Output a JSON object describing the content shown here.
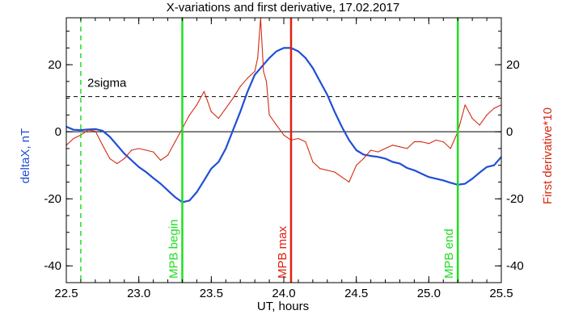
{
  "chart_data": {
    "type": "line",
    "title": "X-variations and first derivative, 17.02.2017",
    "xlabel": "UT, hours",
    "ylabel_left": "deltaX, nT",
    "ylabel_right": "First derivative*10",
    "xlim": [
      22.5,
      25.5
    ],
    "ylim": [
      -45,
      34
    ],
    "x_ticks": [
      22.5,
      23.0,
      23.5,
      24.0,
      24.5,
      25.0,
      25.5
    ],
    "x_tick_labels": [
      "22.5",
      "23.0",
      "23.5",
      "24.0",
      "24.5",
      "25.0",
      "25.5"
    ],
    "y_ticks": [
      -40,
      -20,
      0,
      20
    ],
    "y_tick_labels": [
      "-40",
      "-20",
      "0",
      "20"
    ],
    "grid": false,
    "colors": {
      "deltaX": "#1f4fd6",
      "derivative": "#d42a12",
      "mpb_edges": "#22dd22",
      "mpb_max": "#e02010",
      "dashed_start": "#22dd22",
      "axes": "#000000"
    },
    "reference_lines": [
      {
        "label": "2sigma",
        "y": 10.5,
        "style": "dashed"
      },
      {
        "label": "",
        "y": 0,
        "style": "solid"
      }
    ],
    "vertical_markers": [
      {
        "label": "",
        "x": 22.6,
        "style": "dashed",
        "color": "green"
      },
      {
        "label": "MPB begin",
        "x": 23.3,
        "style": "solid",
        "color": "green"
      },
      {
        "label": "MPB max",
        "x": 24.05,
        "style": "solid",
        "color": "red"
      },
      {
        "label": "MPB end",
        "x": 25.2,
        "style": "solid",
        "color": "green"
      }
    ],
    "series": [
      {
        "color_key": "deltaX",
        "x": [
          22.5,
          22.55,
          22.6,
          22.65,
          22.7,
          22.75,
          22.8,
          22.85,
          22.9,
          22.95,
          23.0,
          23.05,
          23.1,
          23.15,
          23.2,
          23.25,
          23.3,
          23.35,
          23.4,
          23.45,
          23.5,
          23.55,
          23.6,
          23.65,
          23.7,
          23.75,
          23.8,
          23.85,
          23.9,
          23.95,
          24.0,
          24.05,
          24.1,
          24.15,
          24.2,
          24.25,
          24.3,
          24.35,
          24.4,
          24.45,
          24.5,
          24.55,
          24.6,
          24.65,
          24.7,
          24.75,
          24.8,
          24.85,
          24.9,
          24.95,
          25.0,
          25.05,
          25.1,
          25.15,
          25.2,
          25.25,
          25.3,
          25.35,
          25.4,
          25.45,
          25.5
        ],
        "y": [
          1.5,
          0.6,
          0.5,
          0.7,
          0.8,
          0.3,
          -1.5,
          -4,
          -6.5,
          -8.5,
          -10.5,
          -12,
          -13.8,
          -15.5,
          -17.5,
          -19.5,
          -21,
          -20.5,
          -18,
          -14.5,
          -11,
          -9,
          -5,
          0.5,
          6,
          12,
          17,
          19.5,
          22,
          24,
          25,
          25,
          24,
          22,
          19,
          15,
          11,
          6,
          1.5,
          -2.5,
          -5.5,
          -6.8,
          -7.2,
          -7.5,
          -8,
          -9,
          -9.5,
          -10.8,
          -11.5,
          -12.5,
          -13.5,
          -14,
          -14.5,
          -15.2,
          -15.8,
          -15.5,
          -14,
          -12.2,
          -10.5,
          -10,
          -7.5
        ]
      },
      {
        "color_key": "derivative",
        "x": [
          22.5,
          22.55,
          22.6,
          22.65,
          22.7,
          22.75,
          22.8,
          22.85,
          22.9,
          22.95,
          23.0,
          23.05,
          23.1,
          23.15,
          23.2,
          23.25,
          23.3,
          23.35,
          23.4,
          23.45,
          23.5,
          23.55,
          23.6,
          23.65,
          23.7,
          23.75,
          23.8,
          23.82,
          23.84,
          23.86,
          23.88,
          23.9,
          23.95,
          24.0,
          24.05,
          24.1,
          24.15,
          24.2,
          24.25,
          24.3,
          24.35,
          24.4,
          24.45,
          24.5,
          24.55,
          24.6,
          24.65,
          24.7,
          24.75,
          24.8,
          24.85,
          24.9,
          24.95,
          25.0,
          25.05,
          25.1,
          25.15,
          25.2,
          25.25,
          25.3,
          25.35,
          25.4,
          25.45,
          25.5
        ],
        "y": [
          -4,
          -2,
          -1,
          0.5,
          0.2,
          -4,
          -8,
          -9.5,
          -8,
          -5.5,
          -5,
          -5.5,
          -6,
          -8.5,
          -7,
          -3,
          1,
          5,
          8,
          12,
          6,
          4,
          7,
          10,
          13.5,
          16,
          18,
          22,
          34,
          18,
          15,
          5,
          2,
          -1,
          -2.5,
          -2,
          -3,
          -9,
          -11,
          -11.5,
          -12,
          -13.5,
          -15,
          -10,
          -8,
          -5.5,
          -6,
          -5,
          -4,
          -4.5,
          -5,
          -3,
          -3,
          -3.5,
          -2.5,
          -3,
          -5,
          0,
          8,
          4,
          2,
          5,
          7,
          8
        ]
      }
    ]
  }
}
